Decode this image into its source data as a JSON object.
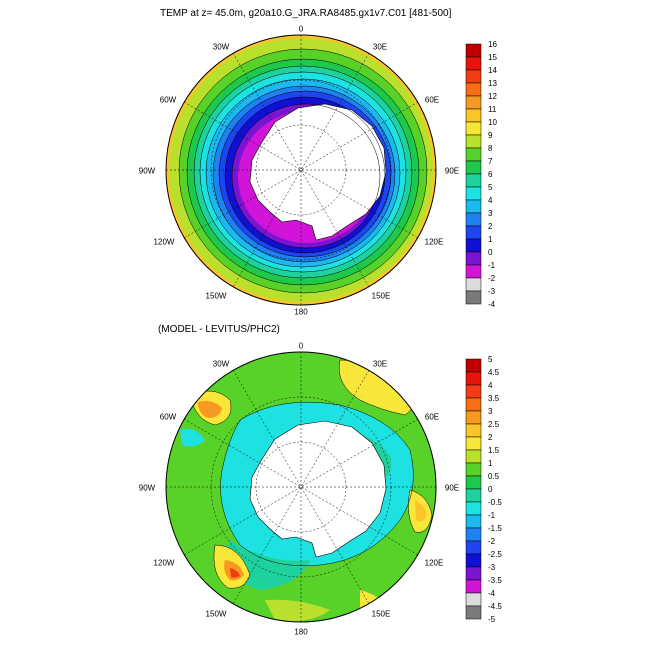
{
  "top_panel": {
    "title": "TEMP at z=  45.0m, g20a10.G_JRA.RA8485.gx1v7.C01 [481-500]",
    "lon_labels": {
      "top": "0",
      "tl": "30W",
      "tr": "30E",
      "ul": "60W",
      "ur": "60E",
      "l": "90W",
      "r": "90E",
      "ll": "120W",
      "lr": "120E",
      "bl": "150W",
      "br": "150E",
      "bottom": "180"
    },
    "colorbar": {
      "labels": [
        "16",
        "15",
        "14",
        "13",
        "12",
        "11",
        "10",
        "9",
        "8",
        "7",
        "6",
        "5",
        "4",
        "3",
        "2",
        "1",
        "0",
        "-1",
        "-2",
        "-3",
        "-4"
      ],
      "colors": [
        "#c00000",
        "#e8140a",
        "#f43c14",
        "#f86e16",
        "#f89a22",
        "#fbc428",
        "#f8e638",
        "#b8e02c",
        "#58d228",
        "#1ec84a",
        "#1ed2a0",
        "#1ee1e1",
        "#1cb8f0",
        "#1e82f0",
        "#1e46f0",
        "#1010d2",
        "#7a14d0",
        "#d214d8",
        "#dcdcdc",
        "#7a7a7a"
      ]
    }
  },
  "bottom_panel": {
    "title": "(MODEL - LEVITUS/PHC2)",
    "lon_labels": {
      "top": "0",
      "tl": "30W",
      "tr": "30E",
      "ul": "60W",
      "ur": "60E",
      "l": "90W",
      "r": "90E",
      "ll": "120W",
      "lr": "120E",
      "bl": "150W",
      "br": "150E",
      "bottom": "180"
    },
    "colorbar": {
      "labels": [
        "5",
        "4.5",
        "4",
        "3.5",
        "3",
        "2.5",
        "2",
        "1.5",
        "1",
        "0.5",
        "0",
        "-0.5",
        "-1",
        "-1.5",
        "-2",
        "-2.5",
        "-3",
        "-3.5",
        "-4",
        "-4.5",
        "-5"
      ],
      "colors": [
        "#c00000",
        "#e8140a",
        "#f43c14",
        "#f86e16",
        "#f89a22",
        "#fbc428",
        "#f8e638",
        "#b8e02c",
        "#58d228",
        "#1ec84a",
        "#1ed2a0",
        "#1ee1e1",
        "#1cb8f0",
        "#1e82f0",
        "#1e46f0",
        "#1010d2",
        "#7a14d0",
        "#d214d8",
        "#dcdcdc",
        "#7a7a7a"
      ]
    }
  }
}
